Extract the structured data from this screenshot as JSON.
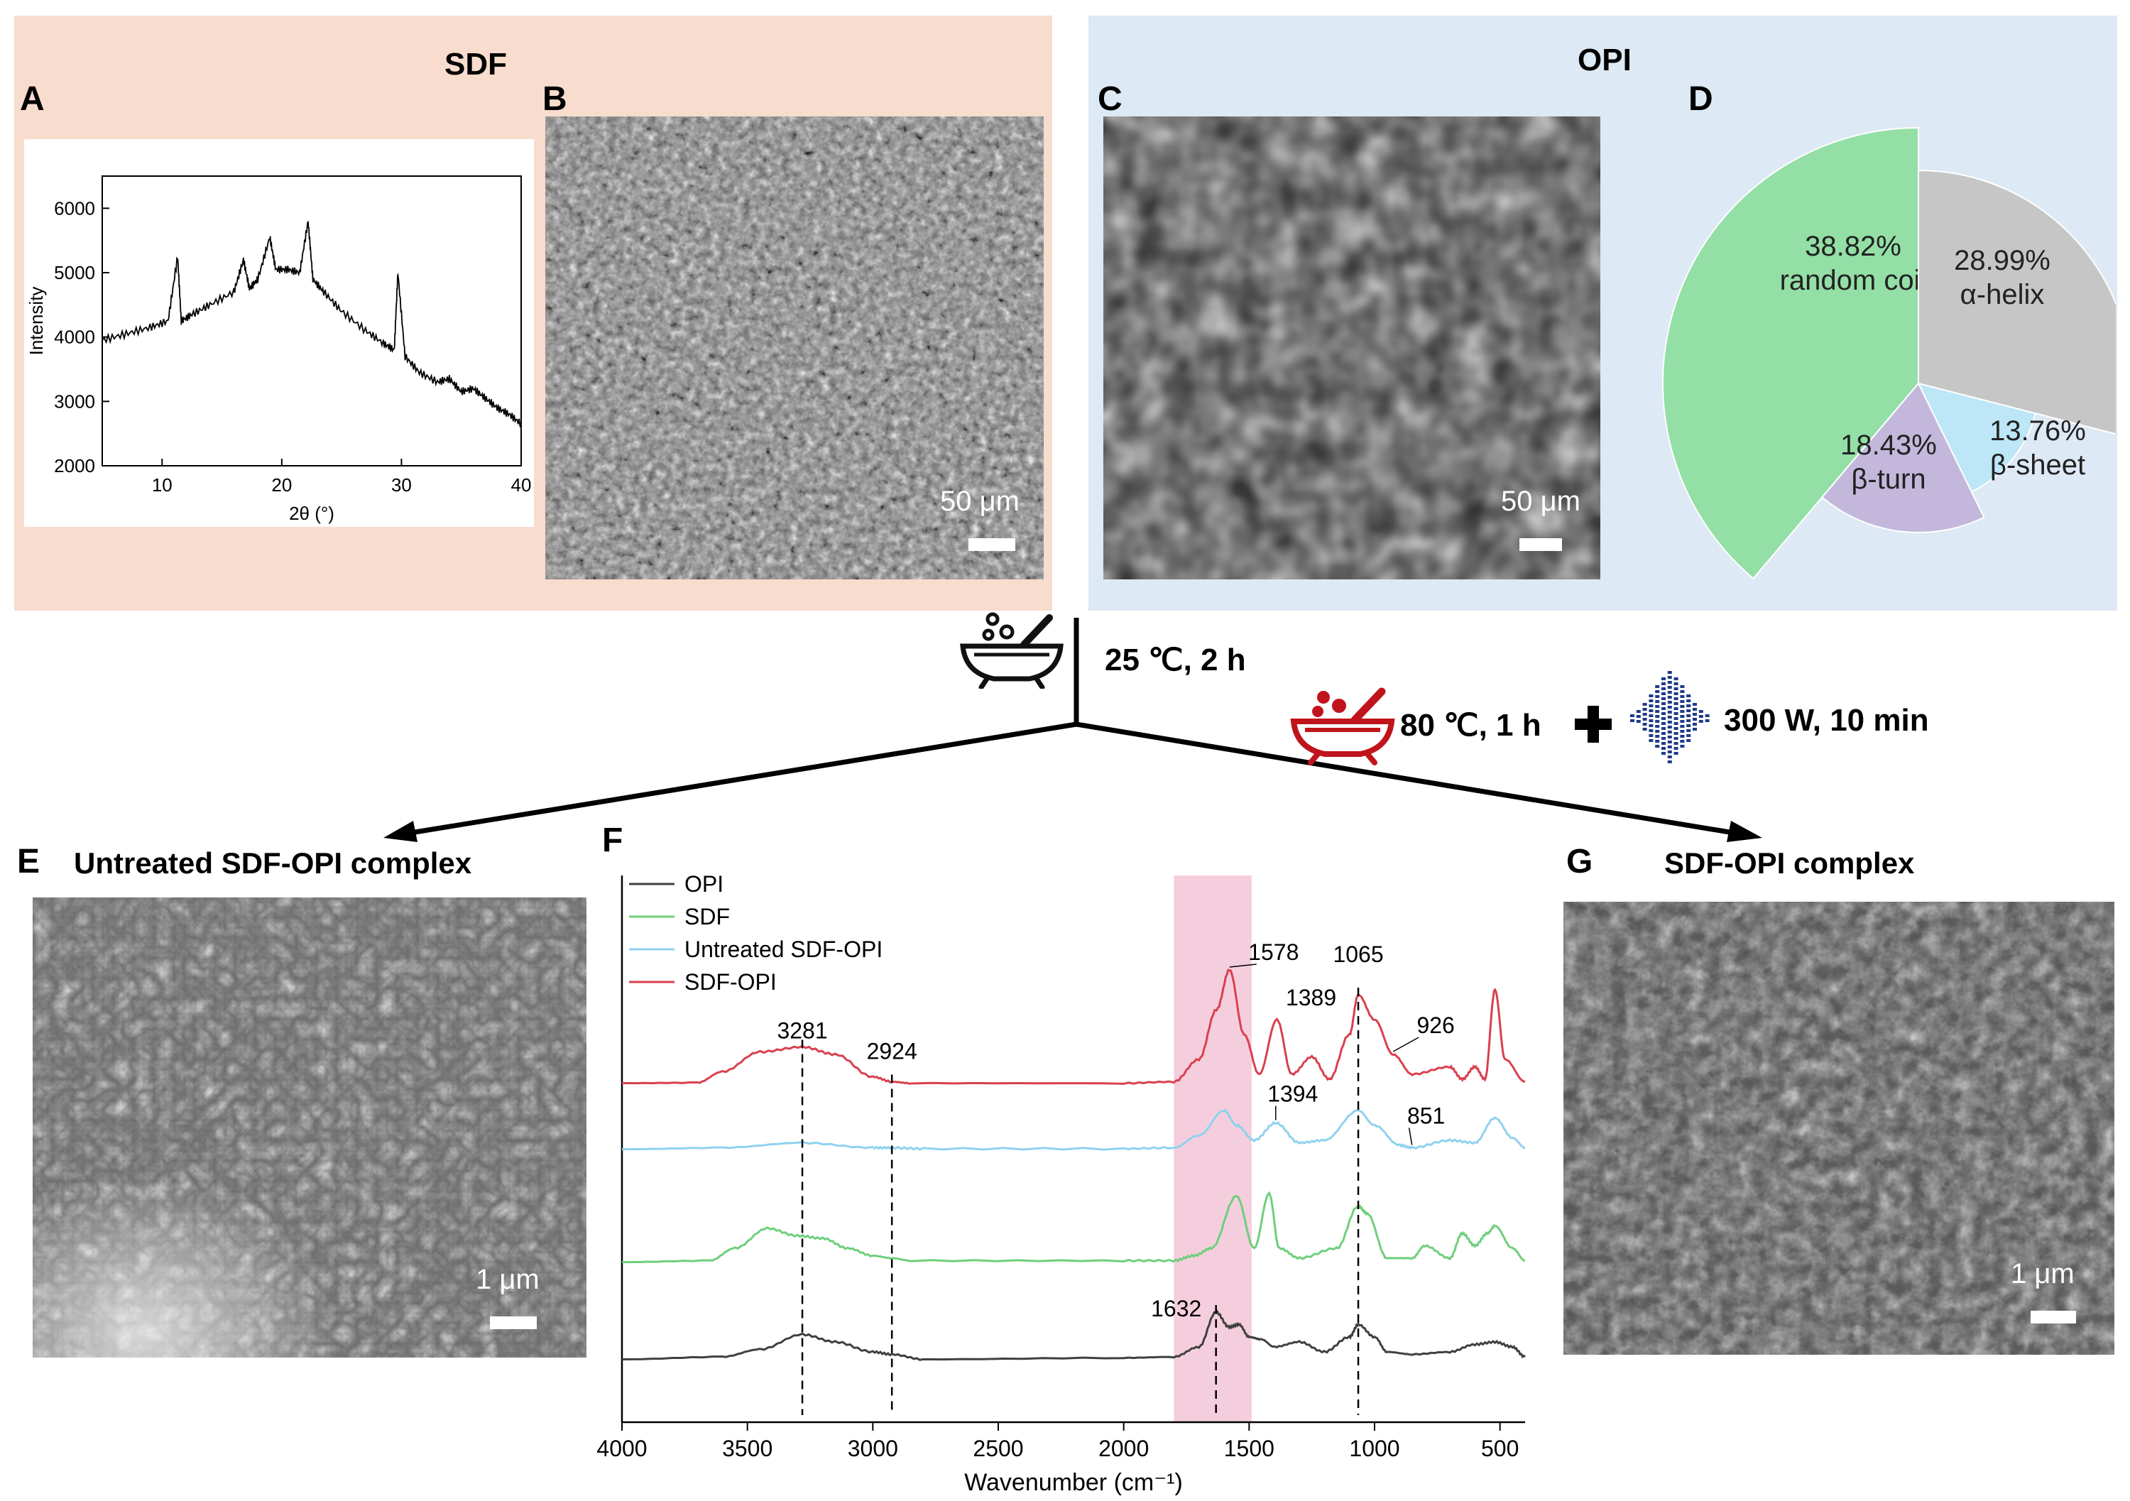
{
  "panels": {
    "sdf_title": "SDF",
    "opi_title": "OPI",
    "letters": {
      "A": "A",
      "B": "B",
      "C": "C",
      "D": "D",
      "E": "E",
      "F": "F",
      "G": "G"
    },
    "e_title": "Untreated SDF-OPI complex",
    "g_title": "SDF-OPI complex",
    "scale_b": "50 μm",
    "scale_c": "50 μm",
    "scale_e": "1 μm",
    "scale_g": "1 μm"
  },
  "process": {
    "step1": "25 ℃, 2 h",
    "step2": "80 ℃, 1 h",
    "step3": "300 W, 10 min",
    "icons": [
      "mixing-bowl-icon",
      "heated-bowl-icon",
      "plus-icon",
      "ultrasound-icon"
    ]
  },
  "colors": {
    "sdf_bg": "#f8dccd",
    "opi_bg": "#dde9f4",
    "random_coil": "#93dfa6",
    "alpha_helix": "#c6c6c6",
    "beta_sheet": "#bde6f6",
    "beta_turn": "#c3b8dc",
    "ftir_opi": "#404040",
    "ftir_sdf": "#6fcf7c",
    "ftir_untreated": "#8fd2ef",
    "ftir_sdf_opi": "#d9404e",
    "ftir_highlight": "#f3c6d8",
    "heated_bowl": "#c0141c",
    "ultrasound": "#1f3a8a"
  },
  "chart_data": [
    {
      "type": "line",
      "panel": "A",
      "xlabel": "2θ (°)",
      "ylabel": "Intensity",
      "xlim": [
        5,
        40
      ],
      "ylim": [
        2000,
        6500
      ],
      "xticks": [
        "10",
        "20",
        "30",
        "40"
      ],
      "yticks": [
        "2000",
        "3000",
        "4000",
        "5000",
        "6000"
      ],
      "series": [
        {
          "x": [
            5,
            7,
            9,
            10.5,
            11.3,
            11.6,
            12.5,
            14,
            16,
            16.8,
            17.3,
            18,
            19,
            19.5,
            20.5,
            21.5,
            22.2,
            22.6,
            23.5,
            25,
            27,
            28.5,
            29.4,
            29.7,
            30.3,
            31.5,
            33,
            34,
            35,
            36,
            37,
            38,
            39,
            40
          ],
          "y": [
            3950,
            4050,
            4150,
            4250,
            5250,
            4250,
            4350,
            4500,
            4700,
            5200,
            4750,
            4900,
            5550,
            5050,
            5050,
            5000,
            5800,
            4900,
            4700,
            4400,
            4100,
            3900,
            3800,
            5000,
            3700,
            3450,
            3300,
            3350,
            3150,
            3200,
            3050,
            2900,
            2800,
            2650
          ]
        }
      ]
    },
    {
      "type": "pie",
      "panel": "D",
      "slices": [
        {
          "label": "random coil",
          "value": 38.82,
          "display": "38.82%"
        },
        {
          "label": "α-helix",
          "value": 28.99,
          "display": "28.99%"
        },
        {
          "label": "β-sheet",
          "value": 13.76,
          "display": "13.76%"
        },
        {
          "label": "β-turn",
          "value": 18.43,
          "display": "18.43%"
        }
      ]
    },
    {
      "type": "line",
      "panel": "F",
      "xlabel": "Wavenumber (cm⁻¹)",
      "xlim": [
        4000,
        400
      ],
      "xticks": [
        "4000",
        "3500",
        "3000",
        "2500",
        "2000",
        "1500",
        "1000",
        "500"
      ],
      "legend_position": "top-left",
      "highlight_range": [
        1800,
        1490
      ],
      "series": [
        {
          "name": "OPI",
          "offset": 0,
          "x": [
            4000,
            3600,
            3450,
            3281,
            3150,
            3000,
            2924,
            2800,
            2000,
            1800,
            1700,
            1632,
            1580,
            1540,
            1500,
            1450,
            1400,
            1300,
            1200,
            1100,
            1065,
            1000,
            950,
            850,
            700,
            600,
            520,
            450,
            400
          ],
          "y": [
            0.05,
            0.1,
            0.25,
            0.55,
            0.4,
            0.2,
            0.15,
            0.05,
            0.08,
            0.1,
            0.3,
            1.0,
            0.7,
            0.75,
            0.5,
            0.45,
            0.3,
            0.4,
            0.2,
            0.5,
            0.75,
            0.5,
            0.2,
            0.15,
            0.2,
            0.35,
            0.4,
            0.3,
            0.1
          ]
        },
        {
          "name": "SDF",
          "offset": 1,
          "x": [
            4000,
            3650,
            3550,
            3420,
            3300,
            3200,
            3100,
            3000,
            2924,
            2850,
            2000,
            1800,
            1720,
            1650,
            1550,
            1480,
            1420,
            1380,
            1300,
            1150,
            1065,
            1030,
            950,
            850,
            800,
            700,
            650,
            600,
            550,
            520,
            450,
            400
          ],
          "y": [
            0.02,
            0.05,
            0.3,
            0.7,
            0.55,
            0.5,
            0.3,
            0.15,
            0.1,
            0.05,
            0.05,
            0.05,
            0.15,
            0.3,
            1.35,
            0.3,
            1.4,
            0.3,
            0.1,
            0.3,
            1.15,
            1.0,
            0.1,
            0.1,
            0.35,
            0.1,
            0.6,
            0.35,
            0.6,
            0.75,
            0.3,
            0.05
          ]
        },
        {
          "name": "Untreated SDF-OPI",
          "offset": 2,
          "x": [
            4000,
            3600,
            3281,
            3000,
            2924,
            2800,
            2000,
            1800,
            1700,
            1600,
            1550,
            1480,
            1394,
            1300,
            1200,
            1065,
            1000,
            900,
            851,
            700,
            600,
            520,
            450,
            400
          ],
          "y": [
            0.02,
            0.05,
            0.15,
            0.05,
            0.05,
            0.03,
            0.03,
            0.05,
            0.3,
            0.8,
            0.5,
            0.2,
            0.55,
            0.15,
            0.2,
            0.8,
            0.5,
            0.1,
            0.05,
            0.2,
            0.15,
            0.65,
            0.25,
            0.05
          ]
        },
        {
          "name": "SDF-OPI",
          "offset": 3,
          "x": [
            4000,
            3700,
            3600,
            3450,
            3281,
            3150,
            3000,
            2924,
            2850,
            2000,
            1800,
            1700,
            1630,
            1578,
            1520,
            1460,
            1389,
            1330,
            1250,
            1180,
            1100,
            1065,
            1000,
            926,
            850,
            700,
            650,
            600,
            560,
            520,
            480,
            400
          ],
          "y": [
            0.02,
            0.03,
            0.25,
            0.65,
            0.75,
            0.6,
            0.15,
            0.05,
            0.02,
            0.02,
            0.05,
            0.5,
            1.5,
            2.3,
            1.0,
            0.2,
            1.3,
            0.2,
            0.55,
            0.1,
            1.0,
            1.8,
            1.3,
            0.6,
            0.2,
            0.35,
            0.1,
            0.35,
            0.1,
            1.9,
            0.5,
            0.05
          ]
        }
      ],
      "annotations": [
        {
          "label": "3281",
          "x": 3281,
          "series": "SDF-OPI",
          "dashed_line": true
        },
        {
          "label": "2924",
          "x": 2924,
          "series": "SDF-OPI",
          "dashed_line": true
        },
        {
          "label": "1578",
          "x": 1578,
          "series": "SDF-OPI",
          "dashed_line": false
        },
        {
          "label": "1389",
          "x": 1389,
          "series": "SDF-OPI",
          "dashed_line": false
        },
        {
          "label": "1065",
          "x": 1065,
          "series": "SDF-OPI",
          "dashed_line": true
        },
        {
          "label": "926",
          "x": 926,
          "series": "SDF-OPI",
          "dashed_line": false
        },
        {
          "label": "1394",
          "x": 1394,
          "series": "Untreated SDF-OPI",
          "dashed_line": false
        },
        {
          "label": "851",
          "x": 851,
          "series": "Untreated SDF-OPI",
          "dashed_line": false
        },
        {
          "label": "1632",
          "x": 1632,
          "series": "OPI",
          "dashed_line": true
        }
      ]
    }
  ]
}
